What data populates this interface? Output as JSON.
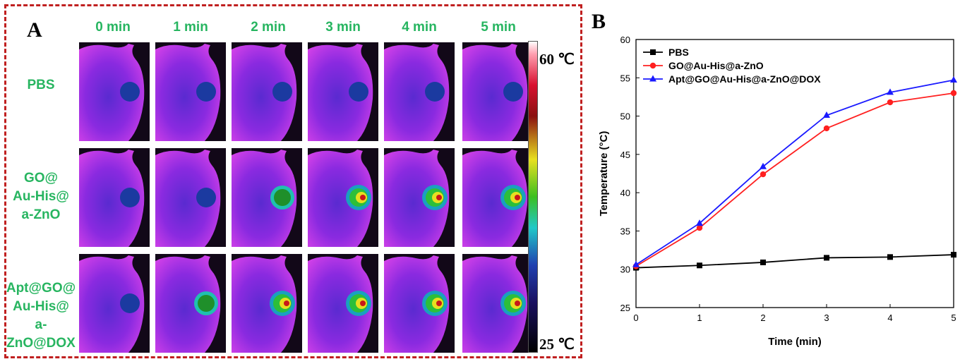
{
  "panel_a": {
    "letter": "A",
    "time_labels": [
      "0 min",
      "1 min",
      "2 min",
      "3 min",
      "4 min",
      "5 min"
    ],
    "groups": [
      {
        "lines": [
          "PBS"
        ]
      },
      {
        "lines": [
          "GO@",
          "Au-His@",
          "a-ZnO"
        ]
      },
      {
        "lines": [
          "Apt@GO@",
          "Au-His@",
          "a-ZnO@DOX"
        ]
      }
    ],
    "colorbar": {
      "max_label": "60 ℃",
      "min_label": "25 ℃",
      "max_c": 60,
      "min_c": 25
    },
    "border_color": "#c02020",
    "label_color": "#27b560"
  },
  "panel_b": {
    "letter": "B"
  },
  "chart_data": {
    "type": "line",
    "xlabel": "Time (min)",
    "ylabel": "Temperature (°C)",
    "xlim": [
      0,
      5
    ],
    "ylim": [
      25,
      60
    ],
    "xticks": [
      0,
      1,
      2,
      3,
      4,
      5
    ],
    "yticks": [
      25,
      30,
      35,
      40,
      45,
      50,
      55,
      60
    ],
    "x": [
      0,
      1,
      2,
      3,
      4,
      5
    ],
    "legend_position": "top-left",
    "grid": false,
    "series": [
      {
        "name": "PBS",
        "values": [
          30.2,
          30.5,
          30.9,
          31.5,
          31.6,
          31.9
        ],
        "color": "#000000",
        "marker": "square"
      },
      {
        "name": "GO@Au-His@a-ZnO",
        "values": [
          30.4,
          35.4,
          42.4,
          48.4,
          51.8,
          53.0
        ],
        "color": "#ff2020",
        "marker": "circle"
      },
      {
        "name": "Apt@GO@Au-His@a-ZnO@DOX",
        "values": [
          30.6,
          36.0,
          43.4,
          50.1,
          53.1,
          54.7
        ],
        "color": "#1a1aff",
        "marker": "triangle"
      }
    ]
  }
}
